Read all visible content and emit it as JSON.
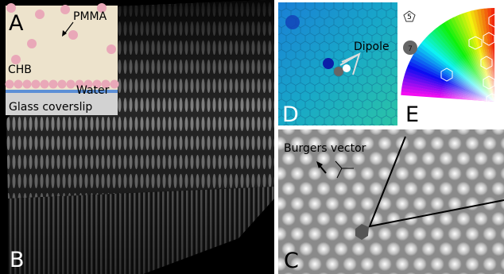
{
  "panels": {
    "a": {
      "label": "A",
      "pmma": "PMMA",
      "solvent": "CHB",
      "water": "Water",
      "substrate": "Glass coverslip"
    },
    "b": {
      "label": "B"
    },
    "c": {
      "label": "C",
      "annotation": "Burgers vector"
    },
    "d": {
      "label": "D",
      "annotation": "Dipole"
    },
    "e": {
      "label": "E",
      "legend": [
        "5",
        "7"
      ]
    }
  }
}
